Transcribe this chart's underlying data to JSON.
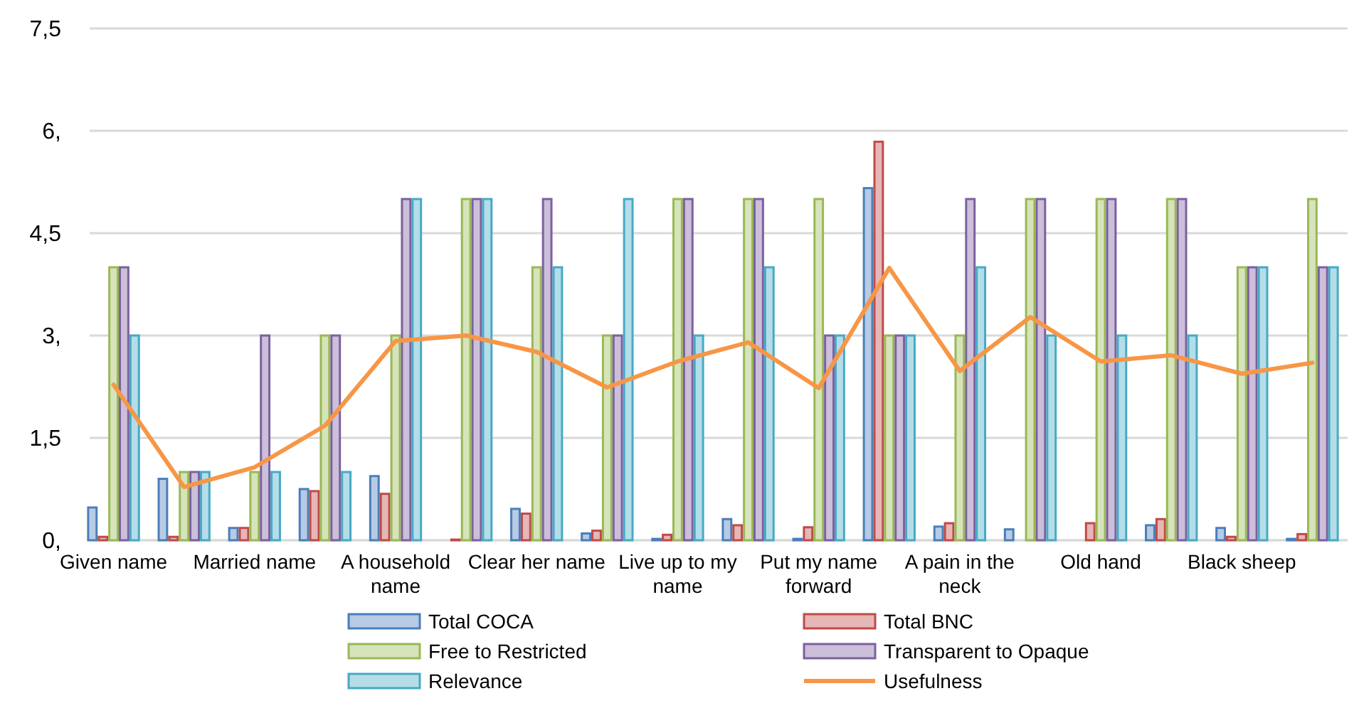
{
  "chart_data": {
    "type": "bar",
    "categories": [
      "Given name",
      null,
      "Married name",
      null,
      "A household name",
      null,
      "Clear her name",
      null,
      "Live up to my name",
      null,
      "Put my name forward",
      null,
      "A pain in the neck",
      null,
      "Old hand",
      null,
      "Black sheep",
      null
    ],
    "series": [
      {
        "name": "Total COCA",
        "color": "#4a7ebb",
        "values": [
          0.48,
          0.9,
          0.18,
          0.75,
          0.94,
          0,
          0.46,
          0.1,
          0.02,
          0.31,
          0.02,
          5.16,
          0.2,
          0.16,
          0,
          0.22,
          0.18,
          0.02
        ]
      },
      {
        "name": "Total BNC",
        "color": "#be4b48",
        "values": [
          0.05,
          0.05,
          0.18,
          0.72,
          0.68,
          0.01,
          0.39,
          0.14,
          0.08,
          0.22,
          0.19,
          5.84,
          0.25,
          0,
          0.25,
          0.31,
          0.05,
          0.09
        ]
      },
      {
        "name": "Free to Restricted",
        "color": "#98b954",
        "values": [
          4,
          1,
          1,
          3,
          3,
          5,
          4,
          3,
          5,
          5,
          5,
          3,
          3,
          5,
          5,
          5,
          4,
          5
        ]
      },
      {
        "name": "Transparent to Opaque",
        "color": "#7d60a0",
        "values": [
          4,
          1,
          3,
          3,
          5,
          5,
          5,
          3,
          5,
          5,
          3,
          3,
          5,
          5,
          5,
          5,
          4,
          4
        ]
      },
      {
        "name": "Relevance",
        "color": "#46aac5",
        "values": [
          3,
          1,
          1,
          1,
          5,
          5,
          4,
          5,
          3,
          4,
          3,
          3,
          4,
          3,
          3,
          3,
          4,
          4
        ]
      },
      {
        "name": "Usefulness",
        "type": "line",
        "color": "#f79646",
        "values": [
          2.28,
          0.78,
          1.07,
          1.68,
          2.92,
          3,
          2.76,
          2.24,
          2.62,
          2.9,
          2.23,
          3.99,
          2.48,
          3.27,
          2.62,
          2.71,
          2.44,
          2.6
        ]
      }
    ],
    "ylim": [
      0,
      7.5
    ],
    "yticks": [
      {
        "value": 0,
        "label": "0,"
      },
      {
        "value": 1.5,
        "label": "1,5"
      },
      {
        "value": 3,
        "label": "3,"
      },
      {
        "value": 4.5,
        "label": "4,5"
      },
      {
        "value": 6,
        "label": "6,"
      },
      {
        "value": 7.5,
        "label": "7,5"
      }
    ],
    "grid": "y",
    "legend": "bottom",
    "marker": "none"
  }
}
